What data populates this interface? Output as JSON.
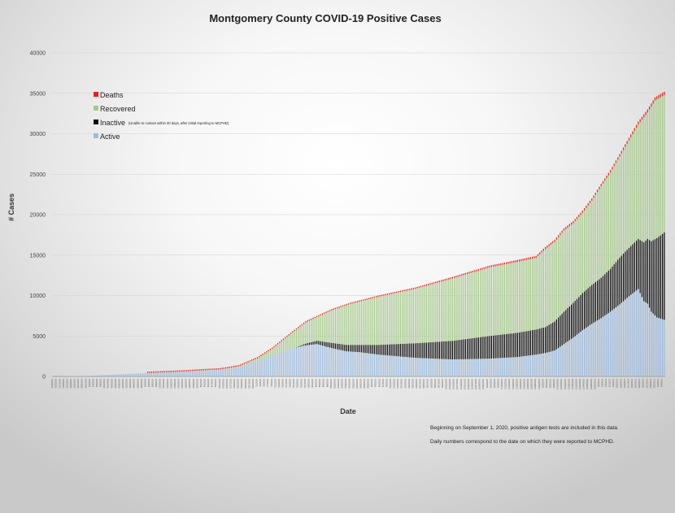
{
  "chart_data": {
    "type": "bar",
    "stacked": true,
    "title": "Montgomery County COVID-19 Positive Cases",
    "xlabel": "Date",
    "ylabel": "# Cases",
    "ylim": [
      0,
      40000
    ],
    "yticks": [
      0,
      5000,
      10000,
      15000,
      20000,
      25000,
      30000,
      35000,
      40000
    ],
    "grid": true,
    "legend_position": "top-left",
    "series": [
      {
        "name": "Deaths",
        "color": "#e8201c"
      },
      {
        "name": "Recovered",
        "color": "#a6c98a"
      },
      {
        "name": "Inactive",
        "color": "#0b0b0b",
        "note": "(Unable to contact within 30 days, after initial reporting to MCPHD)"
      },
      {
        "name": "Active",
        "color": "#9dbbdc"
      }
    ],
    "x_date_range": [
      "3/13/2020",
      "1/11/2021"
    ],
    "knots": {
      "total": [
        [
          0,
          10
        ],
        [
          20,
          80
        ],
        [
          50,
          420
        ],
        [
          70,
          620
        ],
        [
          90,
          900
        ],
        [
          100,
          1300
        ],
        [
          110,
          2300
        ],
        [
          118,
          3500
        ],
        [
          126,
          5000
        ],
        [
          136,
          6800
        ],
        [
          150,
          8300
        ],
        [
          160,
          9100
        ],
        [
          175,
          10000
        ],
        [
          195,
          11000
        ],
        [
          215,
          12300
        ],
        [
          235,
          13700
        ],
        [
          250,
          14400
        ],
        [
          260,
          14900
        ],
        [
          265,
          16000
        ],
        [
          270,
          16900
        ],
        [
          275,
          18300
        ],
        [
          280,
          19200
        ],
        [
          285,
          20500
        ],
        [
          290,
          22000
        ],
        [
          295,
          23800
        ],
        [
          300,
          25500
        ],
        [
          305,
          27500
        ],
        [
          310,
          29500
        ],
        [
          315,
          31500
        ],
        [
          320,
          33000
        ],
        [
          324,
          34500
        ],
        [
          329,
          35200
        ]
      ],
      "deaths": [
        [
          0,
          0
        ],
        [
          80,
          20
        ],
        [
          120,
          100
        ],
        [
          160,
          150
        ],
        [
          220,
          200
        ],
        [
          260,
          250
        ],
        [
          300,
          300
        ],
        [
          329,
          420
        ]
      ],
      "active": [
        [
          0,
          10
        ],
        [
          20,
          80
        ],
        [
          50,
          420
        ],
        [
          70,
          600
        ],
        [
          90,
          800
        ],
        [
          100,
          1100
        ],
        [
          110,
          1800
        ],
        [
          118,
          2600
        ],
        [
          128,
          3400
        ],
        [
          135,
          3800
        ],
        [
          142,
          4000
        ],
        [
          150,
          3500
        ],
        [
          158,
          3100
        ],
        [
          165,
          3000
        ],
        [
          175,
          2700
        ],
        [
          195,
          2300
        ],
        [
          215,
          2100
        ],
        [
          235,
          2200
        ],
        [
          250,
          2400
        ],
        [
          260,
          2700
        ],
        [
          265,
          2900
        ],
        [
          270,
          3200
        ],
        [
          275,
          4000
        ],
        [
          280,
          4800
        ],
        [
          285,
          5700
        ],
        [
          290,
          6500
        ],
        [
          295,
          7200
        ],
        [
          300,
          8000
        ],
        [
          305,
          8900
        ],
        [
          310,
          9900
        ],
        [
          315,
          10800
        ],
        [
          318,
          9300
        ],
        [
          320,
          9000
        ],
        [
          322,
          8000
        ],
        [
          325,
          7300
        ],
        [
          329,
          7000
        ]
      ],
      "inactive": [
        [
          0,
          0
        ],
        [
          130,
          0
        ],
        [
          138,
          300
        ],
        [
          145,
          500
        ],
        [
          150,
          650
        ],
        [
          158,
          800
        ],
        [
          165,
          900
        ],
        [
          175,
          1200
        ],
        [
          195,
          1800
        ],
        [
          215,
          2300
        ],
        [
          235,
          2800
        ],
        [
          250,
          3000
        ],
        [
          260,
          3100
        ],
        [
          265,
          3200
        ],
        [
          270,
          3600
        ],
        [
          275,
          4000
        ],
        [
          280,
          4300
        ],
        [
          285,
          4600
        ],
        [
          290,
          4800
        ],
        [
          295,
          5000
        ],
        [
          300,
          5300
        ],
        [
          305,
          5800
        ],
        [
          310,
          6000
        ],
        [
          315,
          6200
        ],
        [
          320,
          8000
        ],
        [
          325,
          9800
        ],
        [
          329,
          10800
        ]
      ]
    },
    "num_points": 330
  },
  "notes": {
    "line1": "Beginning on September 1, 2020, positive antigen tests are included in this data.",
    "line2": "Daily numbers correspond to the date on which they were reported to MCPHD."
  }
}
